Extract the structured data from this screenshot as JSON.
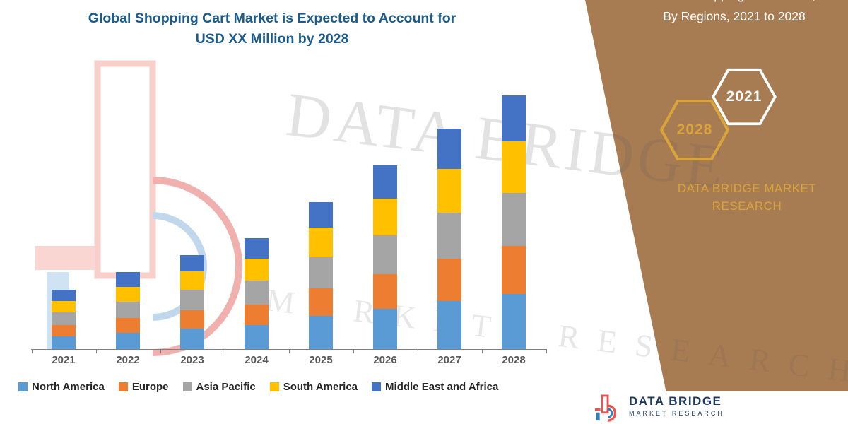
{
  "title": {
    "line1": "Global Shopping Cart Market is Expected to Account for",
    "line2": "USD XX Million by 2028"
  },
  "watermark": {
    "big": "DATA BRIDGE",
    "spaced": "MARKET RESEARCH"
  },
  "side_panel": {
    "colors": {
      "panel": "#A87C52",
      "gold": "#D9A43B"
    },
    "header": {
      "line1": "Global Shopping Cart Market,",
      "line2": "By Regions, 2021 to 2028"
    },
    "hexagons": [
      {
        "label": "2028"
      },
      {
        "label": "2021"
      }
    ],
    "brand": {
      "line1": "DATA BRIDGE MARKET",
      "line2": "RESEARCH"
    }
  },
  "footer_logo": {
    "line1": "DATA BRIDGE",
    "line2": "MARKET RESEARCH"
  },
  "chart_data": {
    "type": "bar",
    "stacked": true,
    "title": "Global Shopping Cart Market is Expected to Account for USD XX Million by 2028",
    "categories": [
      "2021",
      "2022",
      "2023",
      "2024",
      "2025",
      "2026",
      "2027",
      "2028"
    ],
    "series": [
      {
        "name": "North America",
        "color": "#5B9BD5",
        "values": [
          0.7,
          0.9,
          1.1,
          1.3,
          1.8,
          2.2,
          2.6,
          3.0
        ]
      },
      {
        "name": "Europe",
        "color": "#ED7D31",
        "values": [
          0.6,
          0.8,
          1.0,
          1.1,
          1.5,
          1.9,
          2.3,
          2.6
        ]
      },
      {
        "name": "Asia Pacific",
        "color": "#A5A5A5",
        "values": [
          0.7,
          0.9,
          1.1,
          1.3,
          1.7,
          2.1,
          2.5,
          2.9
        ]
      },
      {
        "name": "South America",
        "color": "#FFC000",
        "values": [
          0.6,
          0.8,
          1.0,
          1.2,
          1.6,
          2.0,
          2.4,
          2.8
        ]
      },
      {
        "name": "Middle East and Africa",
        "color": "#4472C4",
        "values": [
          0.6,
          0.8,
          0.9,
          1.1,
          1.4,
          1.8,
          2.2,
          2.5
        ]
      }
    ],
    "xlabel": "",
    "ylabel": "",
    "value_units": "relative units (no numeric axis shown; sizes stated as USD XX Million)",
    "y_axis_visible": false,
    "gridlines": false,
    "legend_position": "bottom"
  }
}
